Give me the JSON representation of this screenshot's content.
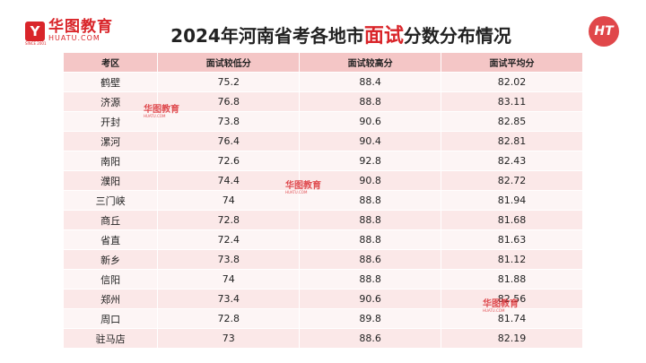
{
  "header": {
    "brand": "华图教育",
    "site": "HUATU.COM",
    "since": "SINCE 2001",
    "title": {
      "before": "2024年河南省考各地市",
      "highlight": "面试",
      "after": "分数分布情况"
    },
    "badge": "HT"
  },
  "watermark": {
    "brand": "华图教育",
    "site": "HUATU.COM"
  },
  "table": {
    "columns": [
      "考区",
      "面试较低分",
      "面试较高分",
      "面试平均分"
    ],
    "rows": [
      [
        "鹤壁",
        75.2,
        88.4,
        82.02
      ],
      [
        "济源",
        76.8,
        88.8,
        83.11
      ],
      [
        "开封",
        73.8,
        90.6,
        82.85
      ],
      [
        "漯河",
        76.4,
        90.4,
        82.81
      ],
      [
        "南阳",
        72.6,
        92.8,
        82.43
      ],
      [
        "濮阳",
        74.4,
        90.8,
        82.72
      ],
      [
        "三门峡",
        74,
        88.8,
        81.94
      ],
      [
        "商丘",
        72.8,
        88.8,
        81.68
      ],
      [
        "省直",
        72.4,
        88.8,
        81.63
      ],
      [
        "新乡",
        73.8,
        88.6,
        81.12
      ],
      [
        "信阳",
        74,
        88.8,
        81.88
      ],
      [
        "郑州",
        73.4,
        90.6,
        82.56
      ],
      [
        "周口",
        72.8,
        89.8,
        81.74
      ],
      [
        "驻马店",
        73,
        88.6,
        82.19
      ]
    ]
  }
}
